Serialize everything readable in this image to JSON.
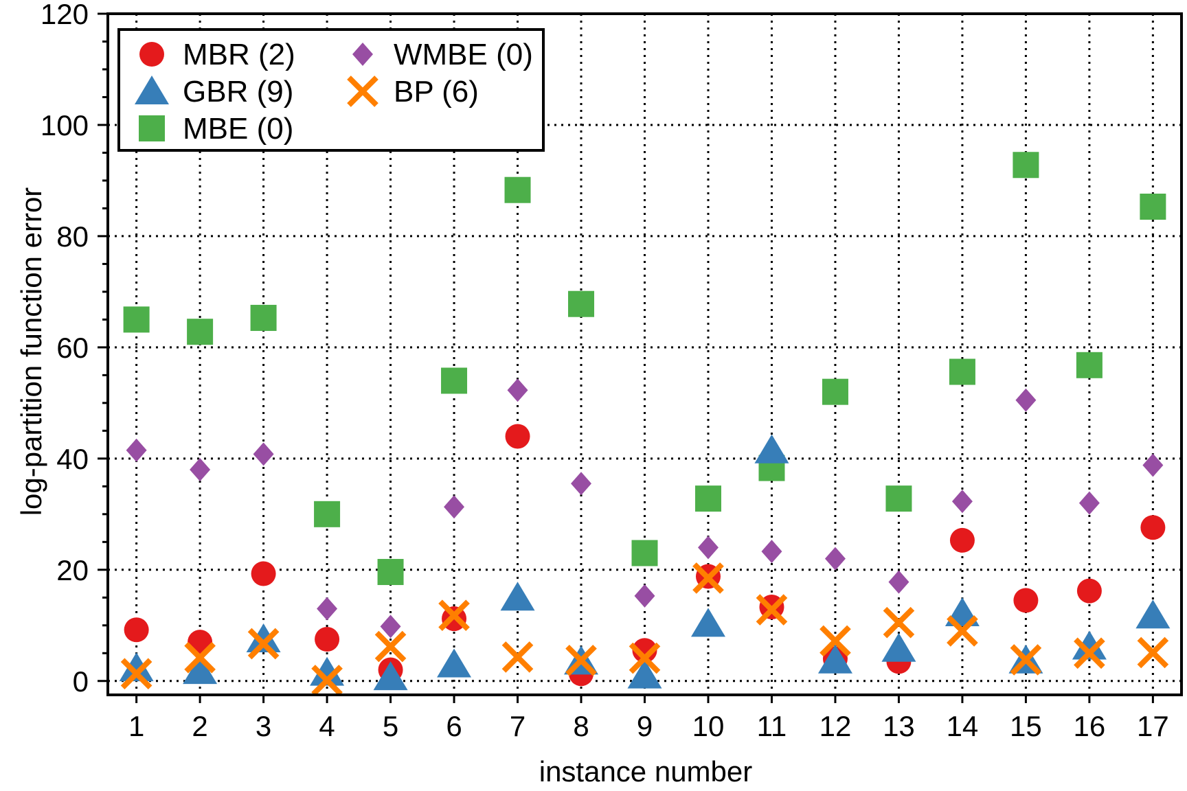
{
  "chart_data": {
    "type": "scatter",
    "title": "",
    "xlabel": "instance number",
    "ylabel": "log-partition function error",
    "xlim": [
      0.55,
      17.45
    ],
    "ylim": [
      -2.5,
      120
    ],
    "yticks": [
      0,
      20,
      40,
      60,
      80,
      100,
      120
    ],
    "x": [
      1,
      2,
      3,
      4,
      5,
      6,
      7,
      8,
      9,
      10,
      11,
      12,
      13,
      14,
      15,
      16,
      17
    ],
    "x_tick_labels": [
      "1",
      "2",
      "3",
      "4",
      "5",
      "6",
      "7",
      "8",
      "9",
      "10",
      "11",
      "12",
      "13",
      "14",
      "15",
      "16",
      "17"
    ],
    "grid": true,
    "legend_position": "top-left",
    "series": [
      {
        "name": "MBE (0)",
        "marker": "square",
        "color": "#4daf4a",
        "values": [
          65,
          62.8,
          65.3,
          30,
          19.6,
          54,
          88.3,
          67.8,
          23,
          32.8,
          38.3,
          52,
          32.8,
          55.6,
          92.8,
          56.8,
          85.3
        ]
      },
      {
        "name": "WMBE (0)",
        "marker": "diamond",
        "color": "#984ea3",
        "values": [
          41.5,
          38,
          40.8,
          13,
          9.8,
          31.3,
          52.3,
          35.5,
          15.3,
          24,
          23.3,
          22,
          17.8,
          32.3,
          50.5,
          32,
          38.8
        ]
      },
      {
        "name": "MBR (2)",
        "marker": "circle",
        "color": "#e41a1c",
        "values": [
          9.2,
          7,
          19.3,
          7.5,
          2,
          11.2,
          44,
          1.3,
          5.5,
          18.8,
          13.3,
          4,
          3.5,
          25.3,
          14.5,
          16.2,
          27.6
        ]
      },
      {
        "name": "GBR (9)",
        "marker": "triangle",
        "color": "#377eb8",
        "values": [
          2.3,
          1.8,
          7.5,
          1.5,
          0.7,
          3,
          15,
          3.5,
          1,
          10.3,
          41.5,
          3.7,
          5.8,
          12.2,
          3.7,
          6.2,
          11.8
        ]
      },
      {
        "name": "BP (6)",
        "marker": "x",
        "color": "#ff7f00",
        "values": [
          1.3,
          4.2,
          6.7,
          0.1,
          6.2,
          11.8,
          4.3,
          3.7,
          4.1,
          18.5,
          12.8,
          7.2,
          10.5,
          9,
          3.8,
          5,
          5.1
        ]
      }
    ],
    "legend_order": [
      "MBR (2)",
      "WMBE (0)",
      "GBR (9)",
      "BP (6)",
      "MBE (0)"
    ]
  }
}
